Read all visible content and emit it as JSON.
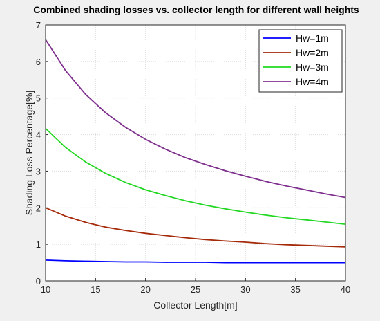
{
  "chart_data": {
    "type": "line",
    "title": "Combined shading losses vs. collector length for different wall heights",
    "xlabel": "Collector Length[m]",
    "ylabel": "Shading Loss Percentage[%]",
    "xlim": [
      10,
      40
    ],
    "ylim": [
      0,
      7
    ],
    "xticks": [
      10,
      15,
      20,
      25,
      30,
      35,
      40
    ],
    "yticks": [
      0,
      1,
      2,
      3,
      4,
      5,
      6,
      7
    ],
    "grid": true,
    "legend_position": "top-right",
    "x": [
      10,
      12,
      14,
      16,
      18,
      20,
      22,
      24,
      26,
      28,
      30,
      32,
      34,
      36,
      38,
      40
    ],
    "series": [
      {
        "name": "Hw=1m",
        "color": "#0000ff",
        "values": [
          0.57,
          0.55,
          0.54,
          0.53,
          0.52,
          0.52,
          0.51,
          0.51,
          0.51,
          0.5,
          0.5,
          0.5,
          0.5,
          0.5,
          0.5,
          0.5
        ]
      },
      {
        "name": "Hw=2m",
        "color": "#a52a0a",
        "values": [
          2.0,
          1.77,
          1.6,
          1.47,
          1.38,
          1.3,
          1.24,
          1.18,
          1.13,
          1.09,
          1.06,
          1.02,
          0.99,
          0.97,
          0.95,
          0.93
        ]
      },
      {
        "name": "Hw=3m",
        "color": "#22d822",
        "values": [
          4.17,
          3.65,
          3.25,
          2.94,
          2.69,
          2.49,
          2.33,
          2.19,
          2.07,
          1.97,
          1.88,
          1.8,
          1.73,
          1.67,
          1.61,
          1.55
        ]
      },
      {
        "name": "Hw=4m",
        "color": "#7e2f8e",
        "values": [
          6.6,
          5.75,
          5.1,
          4.6,
          4.2,
          3.87,
          3.6,
          3.37,
          3.18,
          3.01,
          2.86,
          2.72,
          2.6,
          2.49,
          2.38,
          2.28
        ]
      }
    ]
  }
}
